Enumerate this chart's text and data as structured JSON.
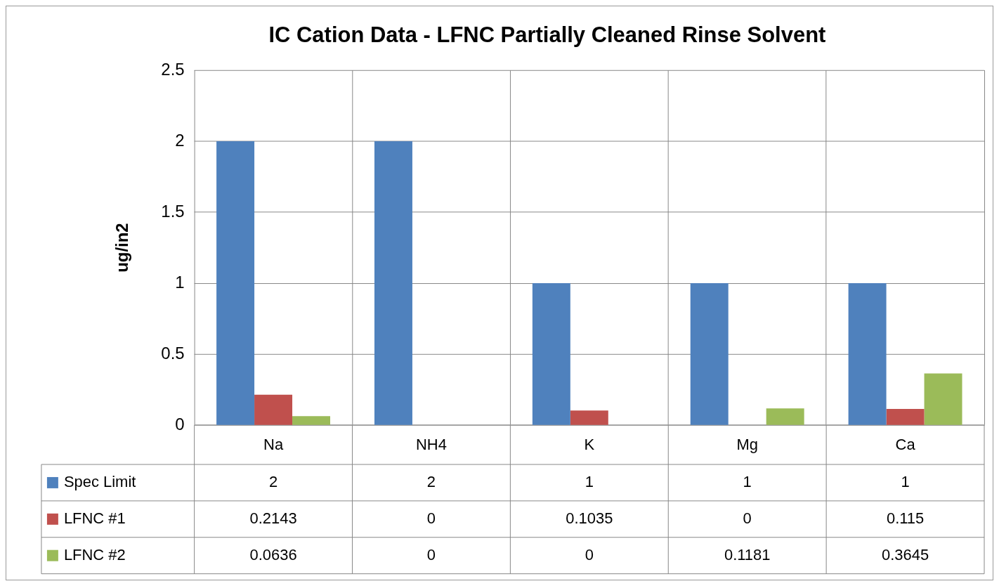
{
  "chart_data": {
    "type": "bar",
    "title": "IC Cation Data - LFNC Partially Cleaned Rinse Solvent",
    "ylabel": "ug/in2",
    "categories": [
      "Na",
      "NH4",
      "K",
      "Mg",
      "Ca"
    ],
    "series": [
      {
        "name": "Spec Limit",
        "color": "#4f81bd",
        "values": [
          2,
          2,
          1,
          1,
          1
        ]
      },
      {
        "name": "LFNC #1",
        "color": "#c0504d",
        "values": [
          0.2143,
          0,
          0.1035,
          0,
          0.115
        ]
      },
      {
        "name": "LFNC #2",
        "color": "#9bbb59",
        "values": [
          0.0636,
          0,
          0,
          0.1181,
          0.3645
        ]
      }
    ],
    "ylim": [
      0,
      2.5
    ],
    "yticks": [
      0,
      0.5,
      1,
      1.5,
      2,
      2.5
    ],
    "grid": true,
    "legend": "bottom",
    "data_labels": true
  }
}
